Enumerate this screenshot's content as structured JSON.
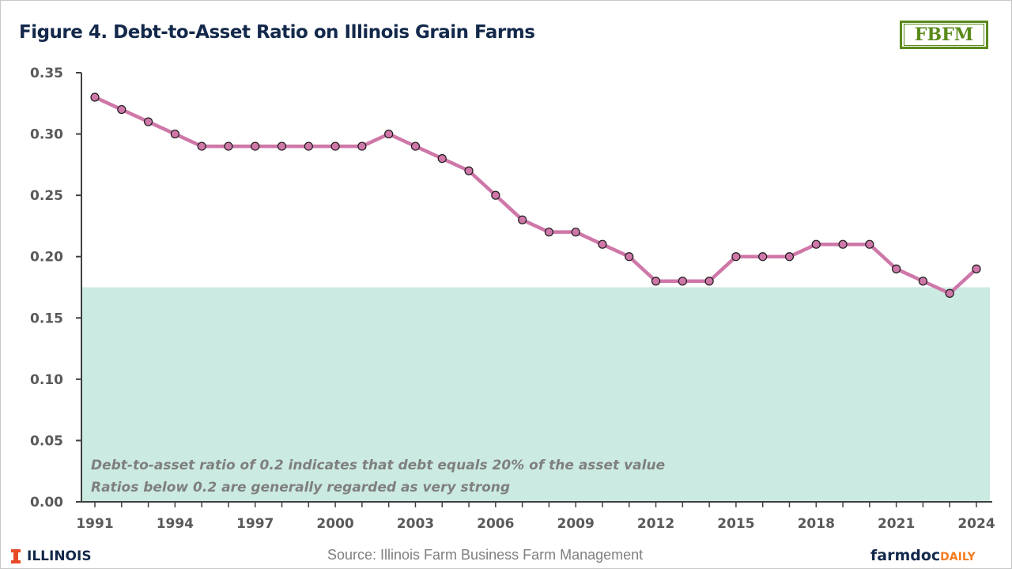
{
  "header": {
    "title": "Figure 4. Debt-to-Asset Ratio on Illinois Grain Farms",
    "logo_text": "FBFM"
  },
  "footer": {
    "university": "ILLINOIS",
    "source": "Source:  Illinois Farm Business Farm Management",
    "brand_main": "farmdoc",
    "brand_sub": "DAILY"
  },
  "colors": {
    "line": "#cf77a8",
    "marker_fill": "#cf77a8",
    "marker_stroke": "#1a1a1a",
    "band": "#cbeae1",
    "title": "#13294b",
    "fbfm_green": "#5a8a1a",
    "illinois_orange": "#e84a27",
    "farmdoc_orange": "#f47c20"
  },
  "chart_data": {
    "type": "line",
    "title": "Figure 4. Debt-to-Asset Ratio on Illinois Grain Farms",
    "xlabel": "",
    "ylabel": "",
    "x": [
      1991,
      1992,
      1993,
      1994,
      1995,
      1996,
      1997,
      1998,
      1999,
      2000,
      2001,
      2002,
      2003,
      2004,
      2005,
      2006,
      2007,
      2008,
      2009,
      2010,
      2011,
      2012,
      2013,
      2014,
      2015,
      2016,
      2017,
      2018,
      2019,
      2020,
      2021,
      2022,
      2023,
      2024
    ],
    "series": [
      {
        "name": "Debt-to-Asset Ratio",
        "values": [
          0.33,
          0.32,
          0.31,
          0.3,
          0.29,
          0.29,
          0.29,
          0.29,
          0.29,
          0.29,
          0.29,
          0.3,
          0.29,
          0.28,
          0.27,
          0.25,
          0.23,
          0.22,
          0.22,
          0.21,
          0.2,
          0.18,
          0.18,
          0.18,
          0.2,
          0.2,
          0.2,
          0.21,
          0.21,
          0.21,
          0.19,
          0.18,
          0.17,
          0.19
        ]
      }
    ],
    "xticks": [
      "1991",
      "1994",
      "1997",
      "2000",
      "2003",
      "2006",
      "2009",
      "2012",
      "2015",
      "2018",
      "2021",
      "2024"
    ],
    "yticks": [
      "0.00",
      "0.05",
      "0.10",
      "0.15",
      "0.20",
      "0.25",
      "0.30",
      "0.35"
    ],
    "ylim": [
      0,
      0.35
    ],
    "xlim": [
      1991,
      2024
    ],
    "grid": false,
    "legend": "none",
    "shaded_band": {
      "from": 0,
      "to": 0.175
    },
    "annotations": [
      "Debt-to-asset ratio of 0.2 indicates that debt equals 20% of the asset value",
      "Ratios below 0.2 are generally regarded as very strong"
    ]
  }
}
